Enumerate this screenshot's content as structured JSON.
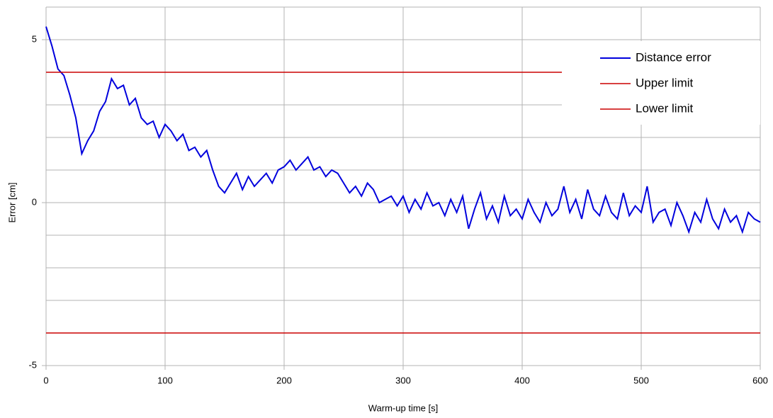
{
  "chart_data": {
    "type": "line",
    "xlabel": "Warm-up time [s]",
    "ylabel": "Error [cm]",
    "xlim": [
      0,
      600
    ],
    "xticks": [
      0,
      100,
      200,
      300,
      400,
      500,
      600
    ],
    "ylim": [
      -5,
      6
    ],
    "yticks": [
      -5,
      0,
      5
    ],
    "ygrid": [
      -5,
      -4,
      -3,
      -2,
      -1,
      0,
      1,
      2,
      3,
      4,
      5,
      6
    ],
    "grid": true,
    "legend": "upper right",
    "series": [
      {
        "name": "Distance error",
        "color": "#0000dd",
        "x": [
          0,
          5,
          10,
          15,
          20,
          25,
          30,
          35,
          40,
          45,
          50,
          55,
          60,
          65,
          70,
          75,
          80,
          85,
          90,
          95,
          100,
          105,
          110,
          115,
          120,
          125,
          130,
          135,
          140,
          145,
          150,
          155,
          160,
          165,
          170,
          175,
          180,
          185,
          190,
          195,
          200,
          205,
          210,
          215,
          220,
          225,
          230,
          235,
          240,
          245,
          250,
          255,
          260,
          265,
          270,
          275,
          280,
          285,
          290,
          295,
          300,
          305,
          310,
          315,
          320,
          325,
          330,
          335,
          340,
          345,
          350,
          355,
          360,
          365,
          370,
          375,
          380,
          385,
          390,
          395,
          400,
          405,
          410,
          415,
          420,
          425,
          430,
          435,
          440,
          445,
          450,
          455,
          460,
          465,
          470,
          475,
          480,
          485,
          490,
          495,
          500,
          505,
          510,
          515,
          520,
          525,
          530,
          535,
          540,
          545,
          550,
          555,
          560,
          565,
          570,
          575,
          580,
          585,
          590,
          595,
          600
        ],
        "values": [
          5.4,
          4.8,
          4.1,
          3.9,
          3.3,
          2.6,
          1.5,
          1.9,
          2.2,
          2.8,
          3.1,
          3.8,
          3.5,
          3.6,
          3.0,
          3.2,
          2.6,
          2.4,
          2.5,
          2.0,
          2.4,
          2.2,
          1.9,
          2.1,
          1.6,
          1.7,
          1.4,
          1.6,
          1.0,
          0.5,
          0.3,
          0.6,
          0.9,
          0.4,
          0.8,
          0.5,
          0.7,
          0.9,
          0.6,
          1.0,
          1.1,
          1.3,
          1.0,
          1.2,
          1.4,
          1.0,
          1.1,
          0.8,
          1.0,
          0.9,
          0.6,
          0.3,
          0.5,
          0.2,
          0.6,
          0.4,
          0.0,
          0.1,
          0.2,
          -0.1,
          0.2,
          -0.3,
          0.1,
          -0.2,
          0.3,
          -0.1,
          0.0,
          -0.4,
          0.1,
          -0.3,
          0.2,
          -0.8,
          -0.2,
          0.3,
          -0.5,
          -0.1,
          -0.6,
          0.2,
          -0.4,
          -0.2,
          -0.5,
          0.1,
          -0.3,
          -0.6,
          0.0,
          -0.4,
          -0.2,
          0.5,
          -0.3,
          0.1,
          -0.5,
          0.4,
          -0.2,
          -0.4,
          0.2,
          -0.3,
          -0.5,
          0.3,
          -0.4,
          -0.1,
          -0.3,
          0.5,
          -0.6,
          -0.3,
          -0.2,
          -0.7,
          0.0,
          -0.4,
          -0.9,
          -0.3,
          -0.6,
          0.1,
          -0.5,
          -0.8,
          -0.2,
          -0.6,
          -0.4,
          -0.9,
          -0.3,
          -0.5,
          -0.6
        ]
      },
      {
        "name": "Upper limit",
        "color": "#cc0000",
        "x": [
          0,
          600
        ],
        "values": [
          4,
          4
        ]
      },
      {
        "name": "Lower limit",
        "color": "#cc0000",
        "x": [
          0,
          600
        ],
        "values": [
          -4,
          -4
        ]
      }
    ]
  }
}
